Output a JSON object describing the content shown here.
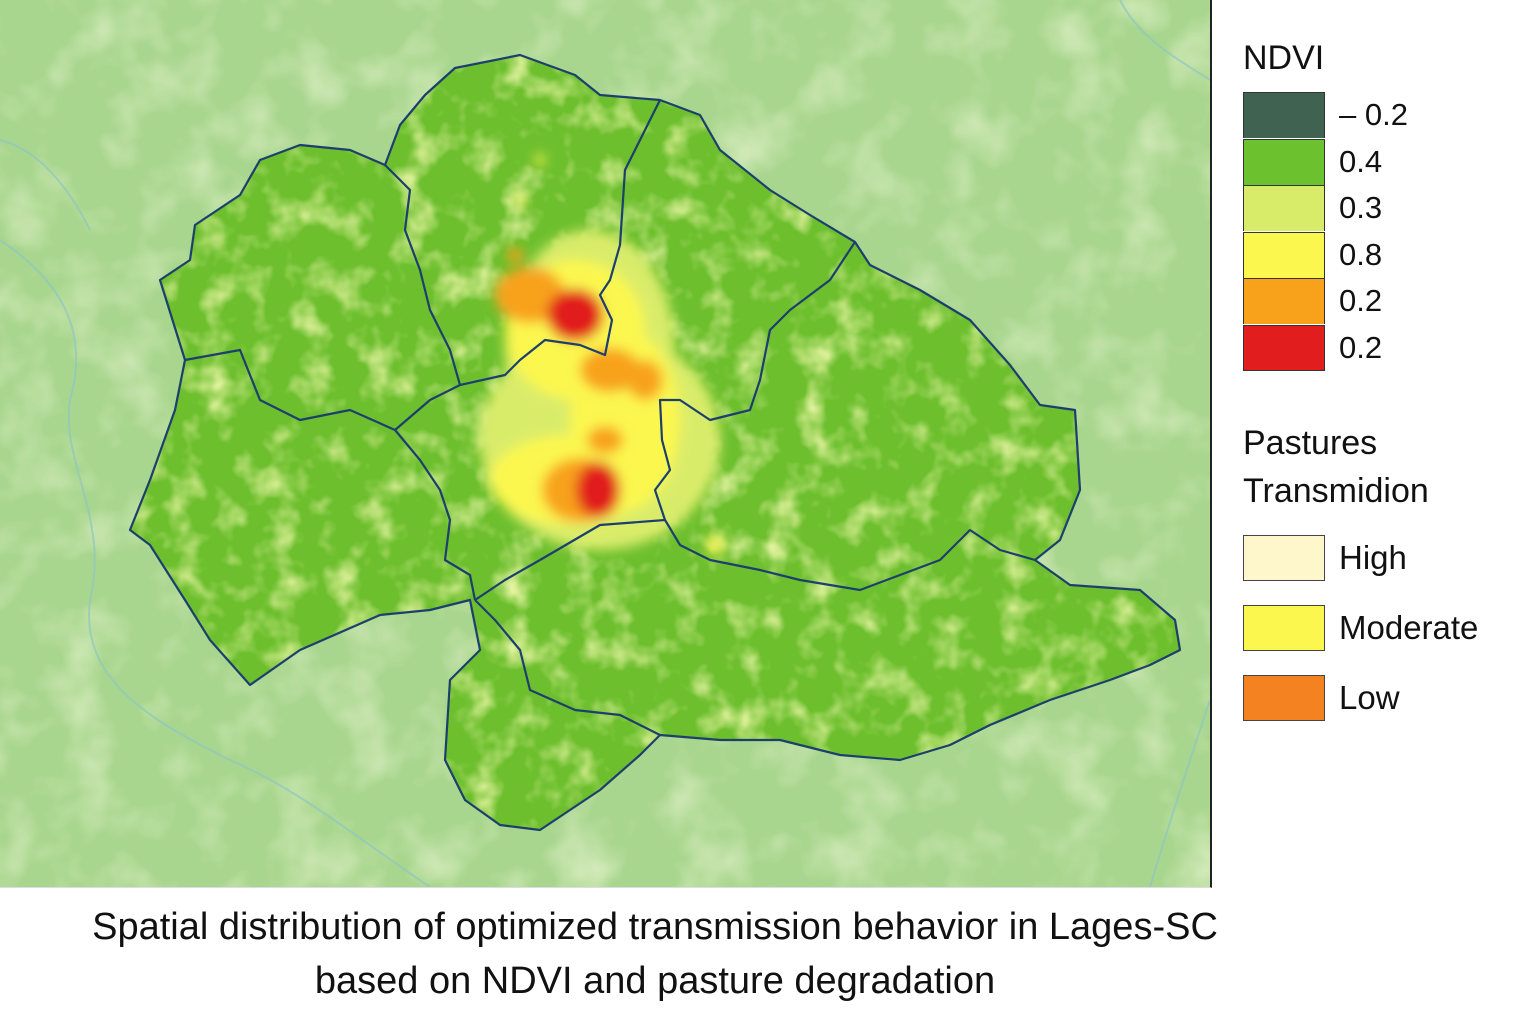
{
  "map": {
    "region_name": "Lages-SC",
    "basemap_color": "#a9d68f",
    "region_fill_color": "#6dbf2e"
  },
  "legend": {
    "ndvi_title": "NDVI",
    "ndvi_classes": [
      {
        "label": "– 0.2",
        "color": "#3f6350"
      },
      {
        "label": "0.4",
        "color": "#6cc12f"
      },
      {
        "label": "0.3",
        "color": "#d9ec6a"
      },
      {
        "label": "0.8",
        "color": "#fbf74f"
      },
      {
        "label": "0.2",
        "color": "#f8a21c"
      },
      {
        "label": "0.2",
        "color": "#e11d1d"
      }
    ],
    "transmission_title_line1": "Pastures",
    "transmission_title_line2": "Transmidion",
    "transmission_classes": [
      {
        "label": "High",
        "color": "#fff7cc"
      },
      {
        "label": "Moderate",
        "color": "#fbf74f"
      },
      {
        "label": "Low",
        "color": "#f58220"
      }
    ]
  },
  "caption": {
    "line1": "Spatial distribution of optimized transmission behavior in Lages-SC",
    "line2": "based on NDVI and pasture degradation"
  }
}
